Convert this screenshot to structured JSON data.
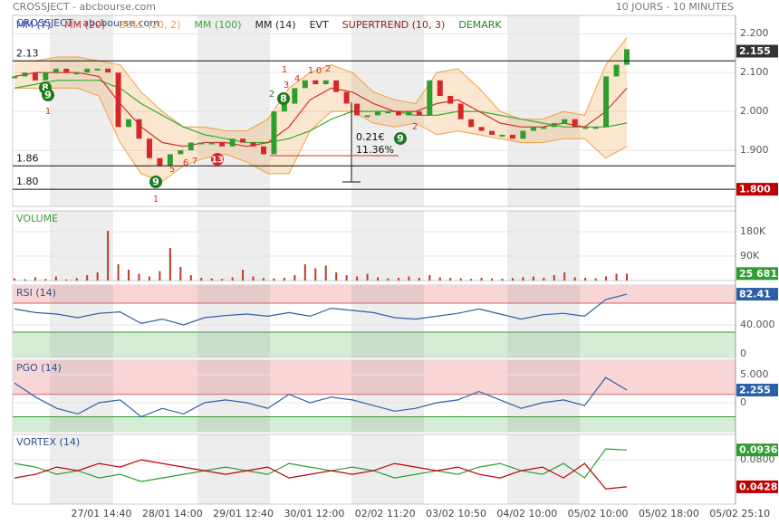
{
  "chart_data": [
    {
      "type": "candlestick",
      "title": "CROSSJECT - abcbourse.com",
      "subtitle": "10 JOURS - 10 MINUTES",
      "ylim": [
        1.756,
        2.247
      ],
      "yticks": [
        {
          "value": 2.2,
          "label": "2.200"
        },
        {
          "value": 2.1,
          "label": "2.100"
        },
        {
          "value": 2.0,
          "label": "2.000"
        },
        {
          "value": 1.9,
          "label": "1.900"
        }
      ],
      "up_color": "#2ca02c",
      "down_color": "#d62728",
      "values": [
        2.09,
        2.1,
        2.08,
        2.1,
        2.11,
        2.1,
        2.1,
        2.11,
        2.11,
        2.1,
        1.96,
        1.98,
        1.93,
        1.88,
        1.86,
        1.89,
        1.9,
        1.92,
        1.92,
        1.92,
        1.91,
        1.93,
        1.92,
        1.91,
        1.89,
        2.0,
        2.02,
        2.06,
        2.08,
        2.07,
        2.08,
        2.05,
        2.02,
        1.99,
        1.99,
        2.0,
        2.0,
        1.99,
        2.0,
        1.99,
        2.08,
        2.04,
        2.02,
        1.98,
        1.96,
        1.95,
        1.94,
        1.94,
        1.93,
        1.95,
        1.96,
        1.96,
        1.97,
        1.98,
        1.96,
        1.96,
        1.96,
        2.09,
        2.12,
        2.16
      ],
      "series": [
        {
          "name": "MM (7)",
          "color": "#2b3fbf"
        },
        {
          "name": "MM (20)",
          "color": "#d03030",
          "values": [
            2.09,
            2.1,
            2.1,
            2.1,
            2.09,
            2.02,
            1.96,
            1.92,
            1.91,
            1.92,
            1.92,
            1.91,
            1.92,
            1.96,
            2.03,
            2.06,
            2.05,
            2.02,
            2.0,
            2.0,
            2.02,
            2.03,
            2.0,
            1.97,
            1.96,
            1.96,
            1.97,
            1.96,
            2.0,
            2.06
          ]
        },
        {
          "name": "BOLL (20, 2)",
          "color": "#f0a040",
          "upper": [
            2.13,
            2.13,
            2.14,
            2.14,
            2.13,
            2.12,
            2.05,
            2.0,
            1.96,
            1.96,
            1.95,
            1.95,
            1.98,
            2.06,
            2.1,
            2.12,
            2.1,
            2.05,
            2.03,
            2.02,
            2.1,
            2.11,
            2.06,
            2.0,
            1.98,
            1.98,
            2.0,
            1.99,
            2.12,
            2.19
          ],
          "lower": [
            2.06,
            2.06,
            2.06,
            2.06,
            2.04,
            1.92,
            1.84,
            1.82,
            1.86,
            1.88,
            1.89,
            1.87,
            1.84,
            1.84,
            1.95,
            2.0,
            2.0,
            1.97,
            1.96,
            1.97,
            1.94,
            1.95,
            1.94,
            1.93,
            1.92,
            1.92,
            1.93,
            1.93,
            1.88,
            1.91
          ]
        },
        {
          "name": "MM (100)",
          "color": "#30b030",
          "values": [
            2.06,
            2.07,
            2.08,
            2.08,
            2.08,
            2.06,
            2.02,
            1.99,
            1.96,
            1.94,
            1.93,
            1.92,
            1.92,
            1.93,
            1.95,
            1.98,
            2.0,
            2.0,
            2.0,
            1.99,
            1.99,
            2.0,
            2.0,
            1.99,
            1.98,
            1.97,
            1.96,
            1.96,
            1.96,
            1.97
          ]
        },
        {
          "name": "MM (14)",
          "color": "#222222"
        },
        {
          "name": "EVT",
          "color": "#222222"
        },
        {
          "name": "SUPERTREND (10, 3)",
          "color": "#a01818"
        },
        {
          "name": "DEMARK",
          "color": "#208020"
        }
      ],
      "hlines": [
        {
          "value": 2.13,
          "label": "2.13"
        },
        {
          "value": 1.86,
          "label": "1.86"
        },
        {
          "value": 1.8,
          "label": "1.80"
        }
      ],
      "price_markers": [
        {
          "value": 2.155,
          "label": "2.155",
          "color": "#333333"
        },
        {
          "value": 1.8,
          "label": "1.800",
          "color": "#c00000"
        }
      ],
      "annotation": [
        "0.21€",
        "11.36%"
      ],
      "demark_green": [
        "8",
        "9",
        "8",
        "9",
        "9"
      ],
      "demark_red": [
        "13"
      ],
      "digits": [
        "1",
        "2",
        "1",
        "3",
        "4",
        "1",
        "0",
        "2",
        "5",
        "6",
        "7",
        "2",
        "1"
      ]
    },
    {
      "type": "bar",
      "title": "VOLUME",
      "ylim": [
        0,
        256700
      ],
      "color": "#c0392b",
      "yticks": [
        {
          "value": 180000,
          "label": "180K"
        },
        {
          "value": 90000,
          "label": "90K"
        }
      ],
      "values": [
        8000,
        5000,
        12000,
        6000,
        15000,
        4000,
        9000,
        20000,
        30000,
        183000,
        60000,
        40000,
        25000,
        15000,
        35000,
        120000,
        50000,
        20000,
        10000,
        8000,
        6000,
        12000,
        40000,
        15000,
        9000,
        8000,
        10000,
        20000,
        60000,
        45000,
        55000,
        30000,
        20000,
        15000,
        25000,
        12000,
        8000,
        10000,
        15000,
        10000,
        20000,
        12000,
        10000,
        8000,
        6000,
        10000,
        8000,
        7000,
        9000,
        12000,
        15000,
        10000,
        20000,
        30000,
        12000,
        10000,
        8000,
        15000,
        25000,
        25681
      ],
      "last_value": {
        "value": 25681,
        "label": "25 681"
      },
      "last_color": "#2e9e2e"
    },
    {
      "type": "line",
      "title": "RSI (14)",
      "ylim": [
        -5,
        95
      ],
      "color": "#2d5fa8",
      "yticks": [
        {
          "value": 40,
          "label": "40.000"
        },
        0
      ],
      "overbought": 70,
      "oversold": 30,
      "values": [
        62,
        57,
        55,
        50,
        56,
        58,
        42,
        48,
        40,
        50,
        53,
        55,
        52,
        57,
        52,
        63,
        60,
        57,
        50,
        48,
        52,
        56,
        62,
        55,
        48,
        54,
        56,
        52,
        75,
        82.41
      ],
      "last_value": 82.41,
      "last_color": "#2d5fa8"
    },
    {
      "type": "line",
      "title": "PGO (14)",
      "ylim": [
        -5.16,
        7.58
      ],
      "color": "#2d5fa8",
      "yticks": [
        {
          "value": 5,
          "label": "5.000"
        },
        0
      ],
      "overbought": 1.5,
      "oversold": -2.5,
      "values": [
        3.5,
        1,
        -1,
        -2,
        0,
        0.5,
        -2.5,
        -1,
        -2,
        0,
        0.5,
        0,
        -1,
        1.5,
        0,
        1,
        0.5,
        -0.5,
        -1.5,
        -1,
        0,
        0.5,
        2,
        0.5,
        -1,
        0,
        0.5,
        -0.5,
        4.5,
        2.255
      ],
      "last_value": 2.255,
      "last_color": "#2d5fa8"
    },
    {
      "type": "vortex",
      "title": "VORTEX (14)",
      "ylim": [
        0.019,
        0.115
      ],
      "yticks": [
        {
          "value": 0.08,
          "label": "0.0800"
        }
      ],
      "series": [
        {
          "color": "#2e9e2e",
          "values": [
            0.075,
            0.07,
            0.06,
            0.065,
            0.055,
            0.06,
            0.05,
            0.055,
            0.06,
            0.065,
            0.07,
            0.065,
            0.06,
            0.075,
            0.07,
            0.065,
            0.07,
            0.065,
            0.055,
            0.06,
            0.065,
            0.06,
            0.07,
            0.075,
            0.065,
            0.06,
            0.075,
            0.055,
            0.095,
            0.0936
          ],
          "last_value": 0.0936
        },
        {
          "color": "#c00000",
          "values": [
            0.055,
            0.06,
            0.07,
            0.065,
            0.075,
            0.07,
            0.08,
            0.075,
            0.07,
            0.065,
            0.06,
            0.065,
            0.07,
            0.055,
            0.06,
            0.065,
            0.06,
            0.065,
            0.075,
            0.07,
            0.065,
            0.07,
            0.06,
            0.055,
            0.065,
            0.07,
            0.055,
            0.075,
            0.04,
            0.0428
          ],
          "last_value": 0.0428
        }
      ],
      "x_labels": [
        "27/01 14:40",
        "28/01 14:00",
        "29/01 12:40",
        "30/01 12:00",
        "02/02 11:20",
        "03/02 10:50",
        "04/02 10:00",
        "05/02 10:00",
        "05/02 18:00",
        "05/02 25:10"
      ]
    }
  ]
}
